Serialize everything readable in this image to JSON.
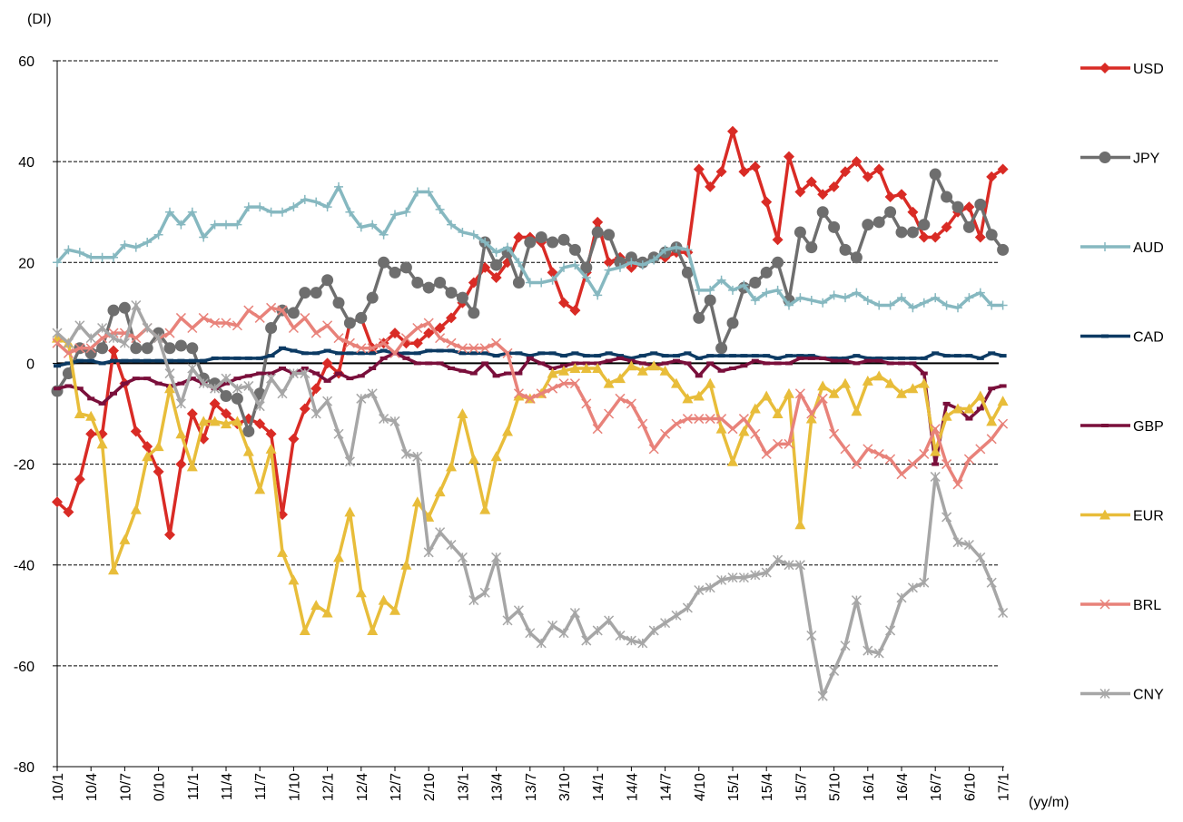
{
  "chart_data": {
    "type": "line",
    "y_label": "(DI)",
    "x_label": "(yy/m)",
    "categories": [
      "10/1",
      null,
      null,
      "10/4",
      null,
      null,
      "10/7",
      null,
      null,
      "0/10",
      null,
      null,
      "11/1",
      null,
      null,
      "11/4",
      null,
      null,
      "11/7",
      null,
      null,
      "1/10",
      null,
      null,
      "12/1",
      null,
      null,
      "12/4",
      null,
      null,
      "12/7",
      null,
      null,
      "2/10",
      null,
      null,
      "13/1",
      null,
      null,
      "13/4",
      null,
      null,
      "13/7",
      null,
      null,
      "3/10",
      null,
      null,
      "14/1",
      null,
      null,
      "14/4",
      null,
      null,
      "14/7",
      null,
      null,
      "4/10",
      null,
      null,
      "15/1",
      null,
      null,
      "15/4",
      null,
      null,
      "15/7",
      null,
      null,
      "5/10",
      null,
      null,
      "16/1",
      null,
      null,
      "16/4",
      null,
      null,
      "16/7",
      null,
      null,
      "6/10",
      null,
      null,
      "17/1"
    ],
    "ylim": [
      -80,
      60
    ],
    "yticks": [
      -80,
      -60,
      -40,
      -20,
      0,
      20,
      40,
      60
    ],
    "grid": true,
    "series": [
      {
        "name": "USD",
        "color": "#d92b25",
        "marker": "diamond",
        "values": [
          -27.5,
          -29.5,
          -23,
          -14,
          -14,
          2.5,
          -4,
          -13.5,
          -16.5,
          -21.5,
          -34,
          -20,
          -10,
          -15,
          -8,
          -10,
          -12,
          -11,
          -12,
          -14,
          -30,
          -15,
          -9,
          -5,
          0,
          -2,
          8,
          9,
          3,
          4,
          6,
          4,
          4,
          6,
          7,
          9,
          12,
          16,
          19,
          17,
          20,
          25,
          25,
          24,
          18,
          12,
          10.5,
          18,
          28,
          20,
          21,
          19,
          20,
          21,
          21,
          22,
          22,
          38.5,
          35,
          38,
          46,
          38,
          39,
          32,
          24.5,
          41,
          34,
          36,
          33.5,
          35,
          38,
          40,
          37,
          38.5,
          33,
          33.5,
          30,
          25,
          25,
          27,
          30,
          31,
          25,
          37,
          38.5
        ]
      },
      {
        "name": "JPY",
        "color": "#6e6e6e",
        "marker": "circle",
        "values": [
          -5.5,
          -2,
          3,
          2,
          3,
          10.5,
          11,
          3,
          3,
          6,
          3,
          3.5,
          3,
          -3,
          -4,
          -6.5,
          -7,
          -13.5,
          -6,
          7,
          10.5,
          10,
          14,
          14,
          16.5,
          12,
          8,
          9,
          13,
          20,
          18,
          19,
          16,
          15,
          16,
          14,
          13,
          10,
          24,
          19.5,
          22,
          16,
          24,
          25,
          24,
          24.5,
          22.5,
          19,
          26,
          25.5,
          20,
          21,
          20,
          21,
          22,
          23,
          18,
          9,
          12.5,
          3,
          8,
          15,
          16,
          18,
          20,
          12.5,
          26,
          23,
          30,
          27,
          22.5,
          21,
          27.5,
          28,
          30,
          26,
          26,
          27.5,
          37.5,
          33,
          31,
          27,
          31.5,
          25.5,
          22.5
        ]
      },
      {
        "name": "AUD",
        "color": "#86b8c0",
        "marker": "plus",
        "values": [
          20,
          22.5,
          22,
          21,
          21,
          21,
          23.5,
          23,
          24,
          25.5,
          30,
          27.5,
          30,
          25,
          27.5,
          27.5,
          27.5,
          31,
          31,
          30,
          30,
          31,
          32.5,
          32,
          31,
          35,
          30,
          27,
          27.5,
          25.5,
          29.5,
          30,
          34,
          34,
          30.5,
          27.5,
          26,
          25.5,
          24,
          22,
          23,
          20,
          16,
          16,
          16.5,
          19,
          19.5,
          17,
          13.5,
          18.5,
          19,
          20,
          19.5,
          20.5,
          22.5,
          23,
          22.5,
          14.5,
          14.5,
          16.5,
          14.5,
          15.5,
          12.5,
          14,
          14.5,
          11.5,
          13,
          12.5,
          12,
          13.5,
          13,
          14,
          12.5,
          11.5,
          11.5,
          13,
          11,
          12,
          13,
          11.5,
          11,
          13,
          14,
          11.5,
          11.5
        ]
      },
      {
        "name": "CAD",
        "color": "#0c3a63",
        "marker": "dash",
        "values": [
          -0.5,
          0,
          0.5,
          0.5,
          0,
          0.5,
          0.5,
          0.5,
          0.5,
          0.5,
          0.5,
          0.5,
          0.5,
          0.5,
          1,
          1,
          1,
          1,
          1,
          1.5,
          3,
          2.5,
          2,
          2,
          2.5,
          2,
          2,
          2,
          2,
          2.5,
          2,
          2,
          2,
          2.5,
          2.5,
          2.5,
          2,
          2,
          2,
          1.5,
          2,
          2,
          1.5,
          2,
          2,
          1.5,
          2,
          1.5,
          1.5,
          2,
          1.5,
          1,
          1.5,
          2,
          1.5,
          1.5,
          2,
          1,
          1.5,
          1.5,
          1.5,
          1.5,
          1.5,
          1.5,
          1,
          1.5,
          1.5,
          1.5,
          1,
          1,
          1,
          1.5,
          1,
          1,
          1,
          1,
          1,
          1,
          2,
          1.5,
          1.5,
          1.5,
          1,
          2,
          1.5
        ]
      },
      {
        "name": "GBP",
        "color": "#7a0f3b",
        "marker": "dash",
        "values": [
          -5,
          -4.5,
          -5,
          -7,
          -8,
          -6,
          -4,
          -3,
          -3,
          -4,
          -4.5,
          -4,
          -3,
          -4,
          -5,
          -4,
          -3,
          -2.5,
          -2,
          -2,
          -1,
          -2,
          -1,
          -2,
          -3.5,
          -2,
          -3,
          -2.5,
          -1,
          1,
          2,
          1,
          0,
          0,
          0,
          -1,
          -1.5,
          -2,
          0,
          -2.5,
          -2,
          -2,
          1,
          0,
          -1,
          -0.5,
          0,
          0,
          0,
          0.5,
          1,
          0.5,
          0,
          -0.5,
          0,
          0.5,
          0,
          -2.5,
          0,
          -1.5,
          -1,
          -0.5,
          0.5,
          0,
          0,
          0,
          1,
          1,
          1,
          0.5,
          0.5,
          0,
          0.5,
          0.5,
          0,
          0,
          0,
          -2,
          -20,
          -8,
          -9,
          -11,
          -9,
          -5,
          -4.5
        ]
      },
      {
        "name": "EUR",
        "color": "#e8bd3a",
        "marker": "triangle",
        "values": [
          5,
          4,
          -10,
          -10.5,
          -16,
          -41,
          -35,
          -29,
          -18.5,
          -16.5,
          -5,
          -14,
          -20.5,
          -11.5,
          -11.5,
          -12,
          -11.5,
          -17.5,
          -25,
          -17,
          -37.5,
          -43,
          -53,
          -48,
          -49.5,
          -38.5,
          -29.5,
          -45.5,
          -53,
          -47,
          -49,
          -40,
          -27.5,
          -30.5,
          -25.5,
          -20.5,
          -10,
          -19,
          -29,
          -18.5,
          -13.5,
          -6.5,
          -7,
          -6,
          -2,
          -1.5,
          -1,
          -1,
          -1,
          -4,
          -3,
          -0.5,
          -1.5,
          -0.5,
          -1.5,
          -4,
          -7,
          -6.5,
          -4,
          -13,
          -19.5,
          -13.5,
          -9,
          -6.5,
          -10,
          -6,
          -32,
          -11,
          -4.5,
          -6,
          -4,
          -9.5,
          -3.5,
          -2.5,
          -4,
          -6,
          -5,
          -4,
          -17.5,
          -10.5,
          -9,
          -9,
          -6.5,
          -11.5,
          -7.5
        ]
      },
      {
        "name": "BRL",
        "color": "#e8827a",
        "marker": "x",
        "values": [
          4,
          2,
          3,
          3,
          5,
          6,
          6,
          5,
          7,
          5,
          6,
          9,
          7,
          9,
          8,
          8,
          7.5,
          10.5,
          9,
          11,
          10.5,
          7,
          9,
          6,
          7.5,
          5,
          4,
          3,
          3,
          4,
          2,
          5,
          7,
          8,
          5,
          4,
          3,
          3,
          3,
          4,
          2,
          -6,
          -7,
          -6,
          -5,
          -4,
          -4,
          -8,
          -13,
          -10,
          -7,
          -8,
          -12,
          -17,
          -14,
          -12,
          -11,
          -11,
          -11,
          -11,
          -13,
          -11,
          -14,
          -18,
          -16,
          -16,
          -6,
          -10,
          -7,
          -14,
          -17,
          -20,
          -17,
          -18,
          -19,
          -22,
          -20,
          -18,
          -13,
          -20,
          -24,
          -19,
          -17,
          -15,
          -12
        ]
      },
      {
        "name": "CNY",
        "color": "#a6a6a6",
        "marker": "asterisk",
        "values": [
          6,
          4,
          7.5,
          5,
          7,
          5,
          4,
          11.5,
          7,
          5,
          -2,
          -8,
          -1,
          -4,
          -5,
          -3,
          -5,
          -4.5,
          -8.5,
          -3,
          -6,
          -2,
          -2,
          -10,
          -7.5,
          -14,
          -19.5,
          -7,
          -6,
          -11,
          -11.5,
          -18,
          -18.5,
          -37.5,
          -33.5,
          -36,
          -38.5,
          -47,
          -45.5,
          -38.5,
          -51,
          -49,
          -53.5,
          -55.5,
          -52,
          -53.5,
          -49.5,
          -55,
          -53,
          -51,
          -54,
          -55,
          -55.5,
          -53,
          -51.5,
          -50,
          -48.5,
          -45,
          -44.5,
          -43,
          -42.5,
          -42.5,
          -42,
          -41.5,
          -39,
          -40,
          -40,
          -54,
          -66,
          -61,
          -56,
          -47,
          -57,
          -57.5,
          -53,
          -46.5,
          -44.5,
          -43.5,
          -22.5,
          -30.5,
          -35.5,
          -36,
          -38.5,
          -43.5,
          -49.5
        ]
      }
    ]
  }
}
